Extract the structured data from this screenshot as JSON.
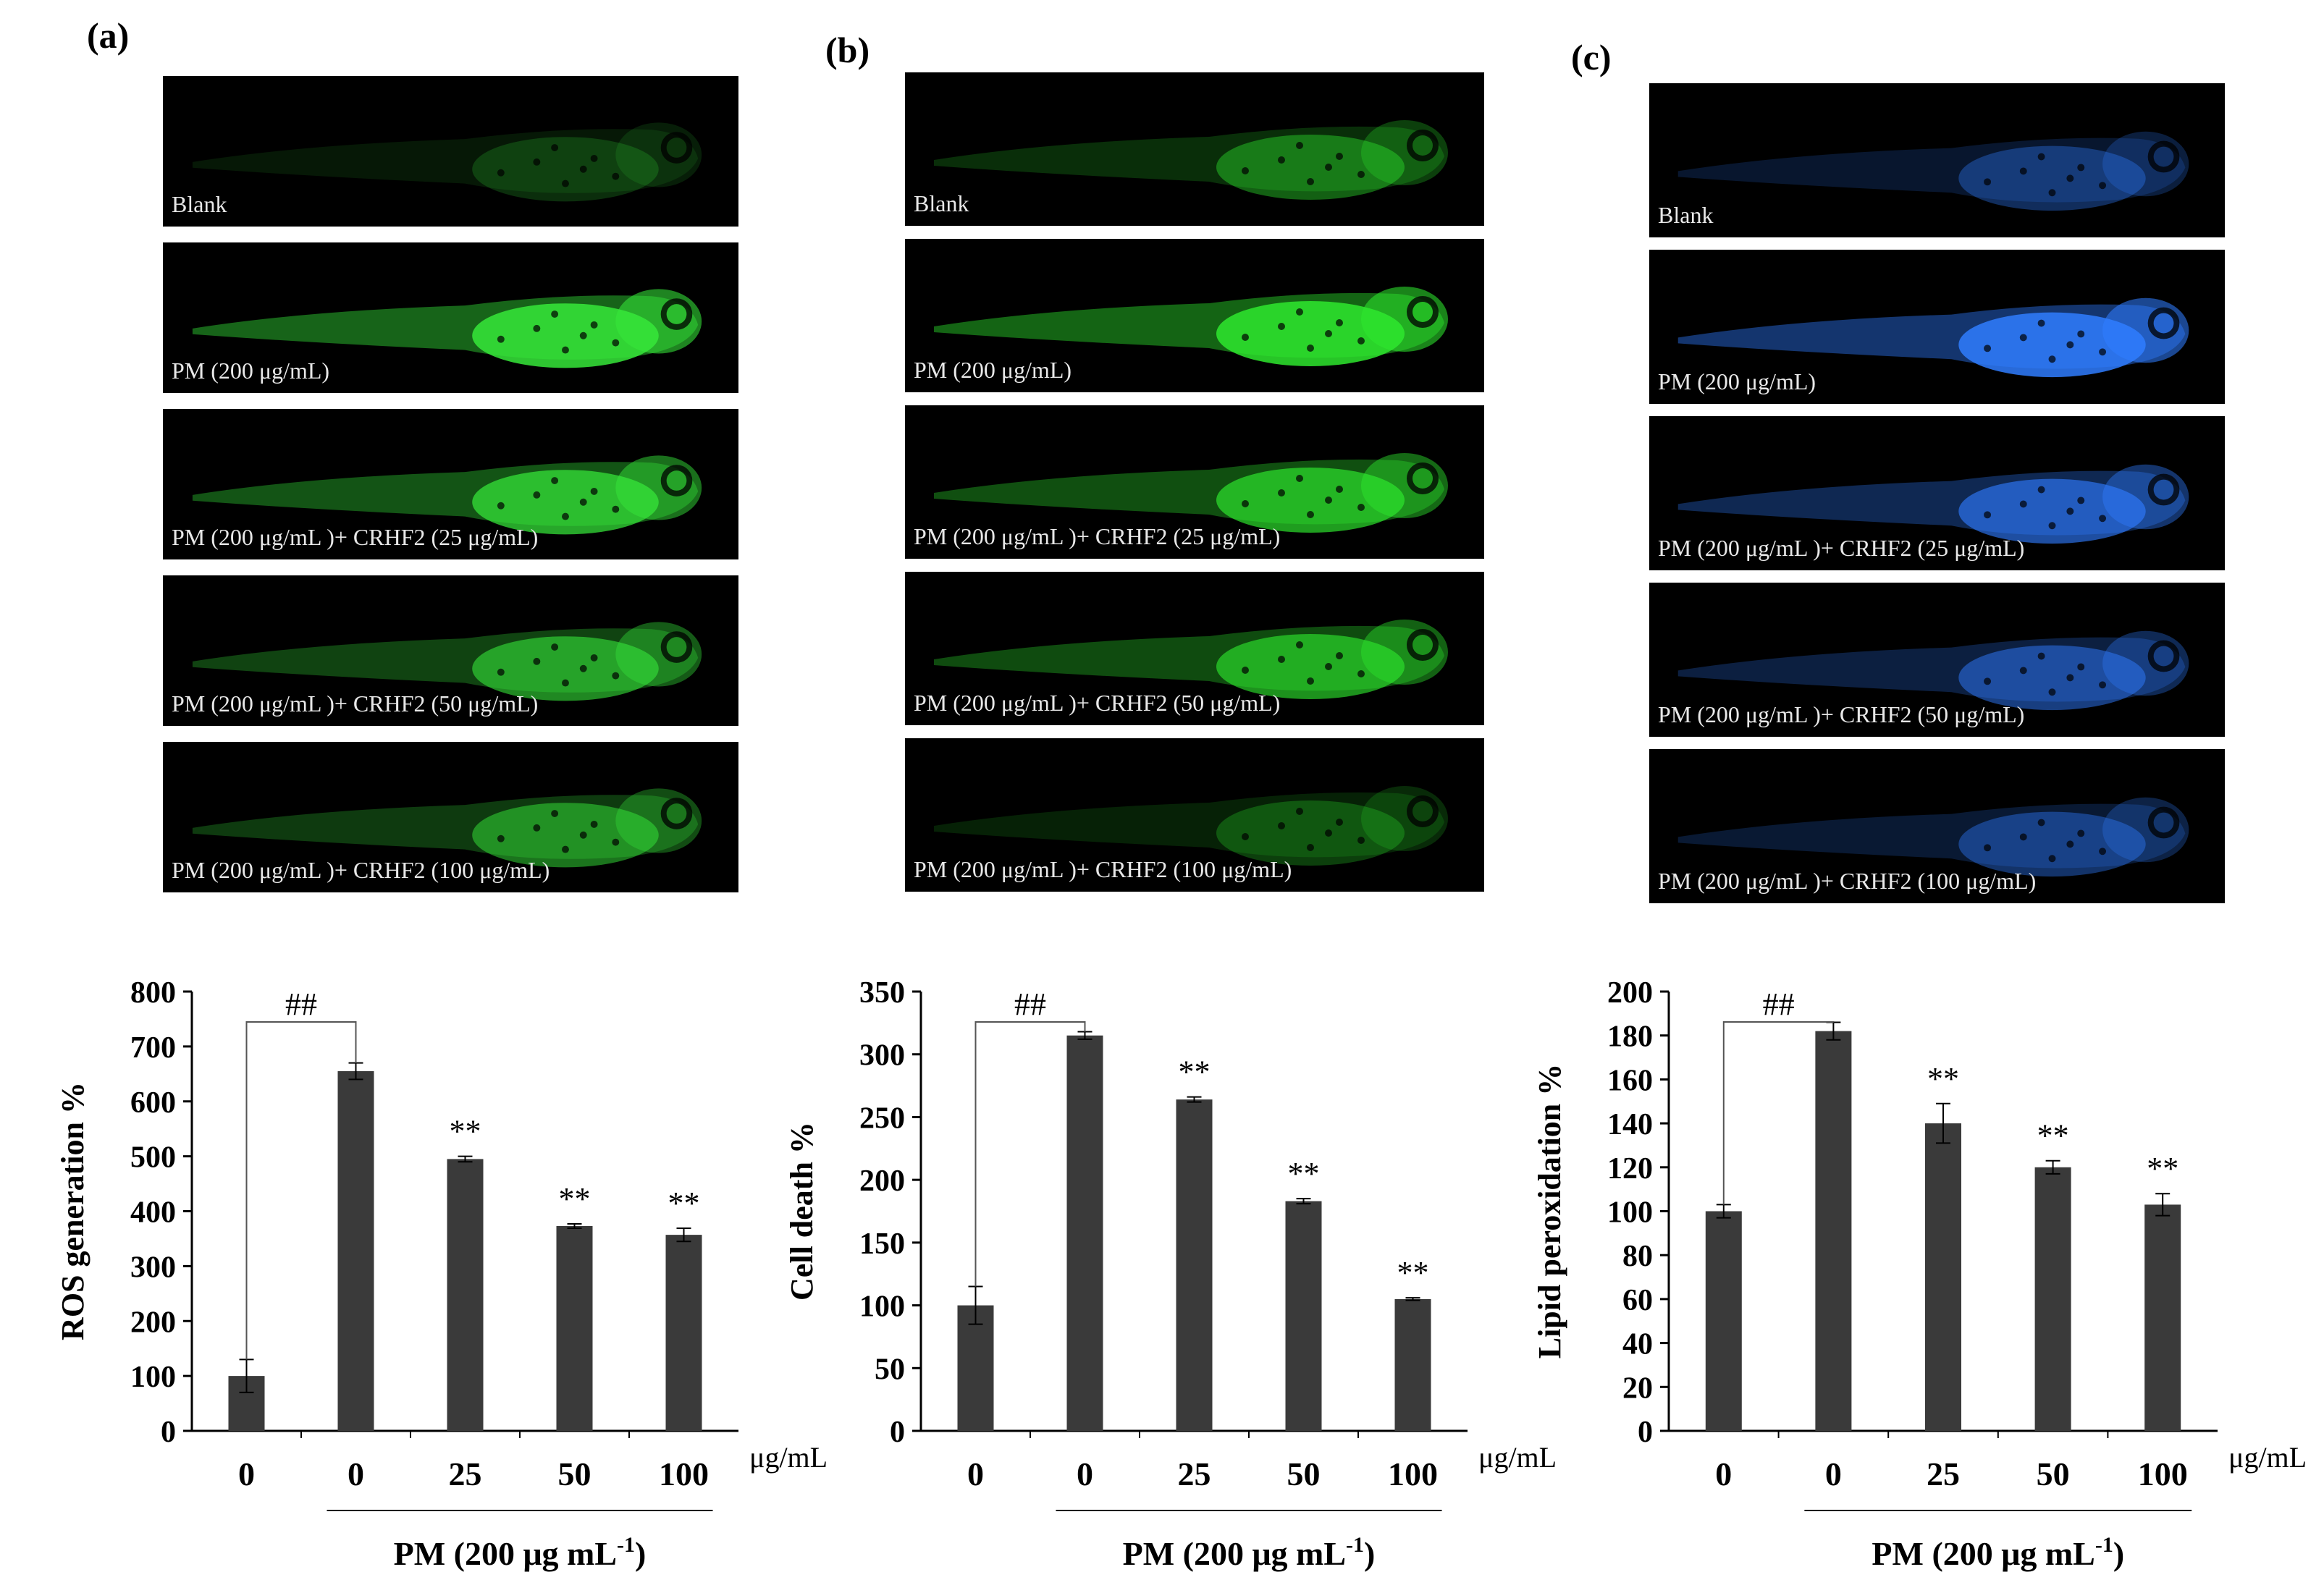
{
  "panels": [
    {
      "letter": "(a)",
      "fluorescence_color": "#36e83a",
      "image_labels": [
        "Blank",
        "PM (200 μg/mL)",
        "PM (200 μg/mL )+ CRHF2 (25 μg/mL)",
        "PM (200 μg/mL )+ CRHF2 (50 μg/mL)",
        "PM (200 μg/mL )+ CRHF2 (100 μg/mL)"
      ],
      "image_intensity": [
        0.22,
        0.95,
        0.8,
        0.65,
        0.55
      ]
    },
    {
      "letter": "(b)",
      "fluorescence_color": "#2ee82e",
      "image_labels": [
        "Blank",
        "PM (200 μg/mL)",
        "PM (200 μg/mL )+ CRHF2 (25 μg/mL)",
        "PM (200 μg/mL )+ CRHF2 (50 μg/mL)",
        "PM (200 μg/mL )+ CRHF2 (100 μg/mL)"
      ],
      "image_intensity": [
        0.45,
        0.95,
        0.75,
        0.7,
        0.3
      ]
    },
    {
      "letter": "(c)",
      "fluorescence_color": "#2f7cff",
      "image_labels": [
        "Blank",
        "PM (200 μg/mL)",
        "PM (200 μg/mL )+ CRHF2 (25 μg/mL)",
        "PM (200 μg/mL )+ CRHF2 (50 μg/mL)",
        "PM (200 μg/mL )+ CRHF2 (100 μg/mL)"
      ],
      "image_intensity": [
        0.4,
        0.95,
        0.7,
        0.55,
        0.45
      ]
    }
  ],
  "chart_data": [
    {
      "type": "bar",
      "categories": [
        "0",
        "0",
        "25",
        "50",
        "100"
      ],
      "values": [
        100,
        655,
        495,
        373,
        357
      ],
      "errors": [
        30,
        15,
        5,
        4,
        12
      ],
      "ylabel": "ROS generation %",
      "ylim": [
        0,
        800
      ],
      "yticks": [
        0,
        100,
        200,
        300,
        400,
        500,
        600,
        700,
        800
      ],
      "unit_label": "μg/mL",
      "group_label": "PM  (200 μg mL",
      "group_label_sup": "-1",
      "group_label_end": ")",
      "bracket_label": "##",
      "significance": [
        "",
        "",
        "**",
        "**",
        "**"
      ],
      "bar_color": "#3a3a3a"
    },
    {
      "type": "bar",
      "categories": [
        "0",
        "0",
        "25",
        "50",
        "100"
      ],
      "values": [
        100,
        315,
        264,
        183,
        105
      ],
      "errors": [
        15,
        3,
        2,
        2,
        1
      ],
      "ylabel": "Cell death %",
      "ylim": [
        0,
        350
      ],
      "yticks": [
        0,
        50,
        100,
        150,
        200,
        250,
        300,
        350
      ],
      "unit_label": "μg/mL",
      "group_label": "PM  (200 μg mL",
      "group_label_sup": "-1",
      "group_label_end": ")",
      "bracket_label": "##",
      "significance": [
        "",
        "",
        "**",
        "**",
        "**"
      ],
      "bar_color": "#3a3a3a"
    },
    {
      "type": "bar",
      "categories": [
        "0",
        "0",
        "25",
        "50",
        "100"
      ],
      "values": [
        100,
        182,
        140,
        120,
        103
      ],
      "errors": [
        3,
        4,
        9,
        3,
        5
      ],
      "ylabel": "Lipid peroxidation %",
      "ylim": [
        0,
        200
      ],
      "yticks": [
        0,
        20,
        40,
        60,
        80,
        100,
        120,
        140,
        160,
        180,
        200
      ],
      "unit_label": "μg/mL",
      "group_label": "PM  (200 μg mL",
      "group_label_sup": "-1",
      "group_label_end": ")",
      "bracket_label": "##",
      "significance": [
        "",
        "",
        "**",
        "**",
        "**"
      ],
      "bar_color": "#3a3a3a"
    }
  ]
}
